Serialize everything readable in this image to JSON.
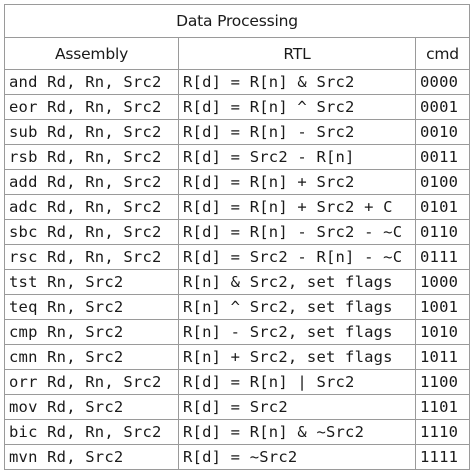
{
  "table": {
    "title": "Data Processing",
    "headers": [
      "Assembly",
      "RTL",
      "cmd"
    ],
    "rows": [
      {
        "assembly": "and Rd, Rn, Src2",
        "rtl": "R[d] = R[n] & Src2",
        "cmd": "0000"
      },
      {
        "assembly": "eor Rd, Rn, Src2",
        "rtl": "R[d] = R[n] ^ Src2",
        "cmd": "0001"
      },
      {
        "assembly": "sub Rd, Rn, Src2",
        "rtl": "R[d] = R[n] - Src2",
        "cmd": "0010"
      },
      {
        "assembly": "rsb Rd, Rn, Src2",
        "rtl": "R[d] = Src2 - R[n]",
        "cmd": "0011"
      },
      {
        "assembly": "add Rd, Rn, Src2",
        "rtl": "R[d] = R[n] + Src2",
        "cmd": "0100"
      },
      {
        "assembly": "adc Rd, Rn, Src2",
        "rtl": "R[d] = R[n] + Src2 + C",
        "cmd": "0101"
      },
      {
        "assembly": "sbc Rd, Rn, Src2",
        "rtl": "R[d] = R[n] - Src2 - ~C",
        "cmd": "0110"
      },
      {
        "assembly": "rsc Rd, Rn, Src2",
        "rtl": "R[d] = Src2 - R[n] - ~C",
        "cmd": "0111"
      },
      {
        "assembly": "tst Rn, Src2",
        "rtl": "R[n] & Src2, set flags",
        "cmd": "1000"
      },
      {
        "assembly": "teq Rn, Src2",
        "rtl": "R[n] ^ Src2, set flags",
        "cmd": "1001"
      },
      {
        "assembly": "cmp Rn, Src2",
        "rtl": "R[n] - Src2, set flags",
        "cmd": "1010"
      },
      {
        "assembly": "cmn Rn, Src2",
        "rtl": "R[n] + Src2, set flags",
        "cmd": "1011"
      },
      {
        "assembly": "orr Rd, Rn, Src2",
        "rtl": "R[d] = R[n] | Src2",
        "cmd": "1100"
      },
      {
        "assembly": "mov Rd, Src2",
        "rtl": "R[d] = Src2",
        "cmd": "1101"
      },
      {
        "assembly": "bic Rd, Rn, Src2",
        "rtl": "R[d] = R[n] & ~Src2",
        "cmd": "1110"
      },
      {
        "assembly": "mvn Rd, Src2",
        "rtl": "R[d] = ~Src2",
        "cmd": "1111"
      }
    ]
  }
}
